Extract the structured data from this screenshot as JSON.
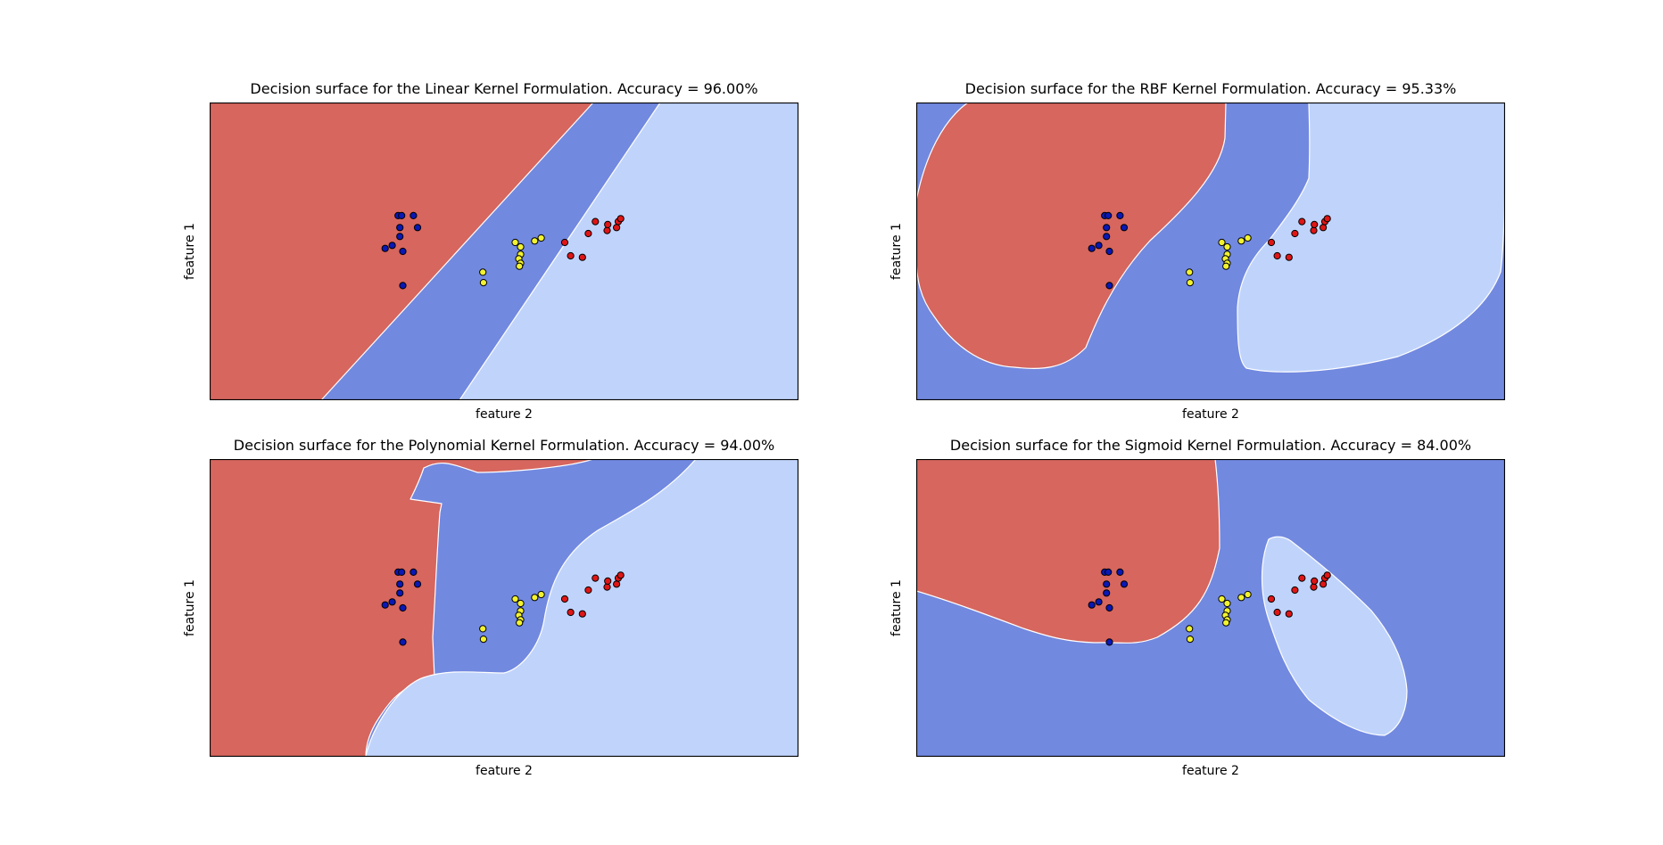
{
  "colors": {
    "class_red": "#d6665e",
    "class_mid": "#7289e0",
    "class_light": "#c0d4fb",
    "edge": "#ffffff",
    "pt_blue": "#0a18b5",
    "pt_yellow": "#f2f230",
    "pt_red": "#e01515",
    "frame": "#000000"
  },
  "chart_data": [
    {
      "type": "scatter",
      "title": "Decision surface for the Linear Kernel Formulation. Accuracy = 96.00%",
      "xlabel": "feature 2",
      "ylabel": "feature 1",
      "xlim": [
        0,
        1
      ],
      "ylim": [
        0,
        1
      ],
      "ticks": "none",
      "grid": false,
      "kernel": "linear"
    },
    {
      "type": "scatter",
      "title": "Decision surface for the RBF Kernel Formulation. Accuracy = 95.33%",
      "xlabel": "feature 2",
      "ylabel": "feature 1",
      "xlim": [
        0,
        1
      ],
      "ylim": [
        0,
        1
      ],
      "ticks": "none",
      "grid": false,
      "kernel": "rbf"
    },
    {
      "type": "scatter",
      "title": "Decision surface for the Polynomial Kernel Formulation. Accuracy = 94.00%",
      "xlabel": "feature 2",
      "ylabel": "feature 1",
      "xlim": [
        0,
        1
      ],
      "ylim": [
        0,
        1
      ],
      "ticks": "none",
      "grid": false,
      "kernel": "poly"
    },
    {
      "type": "scatter",
      "title": "Decision surface for the Sigmoid Kernel Formulation. Accuracy = 84.00%",
      "xlabel": "feature 2",
      "ylabel": "feature 1",
      "xlim": [
        0,
        1
      ],
      "ylim": [
        0,
        1
      ],
      "ticks": "none",
      "grid": false,
      "kernel": "sigmoid"
    }
  ],
  "points": [
    {
      "x": 0.32,
      "y": 0.62,
      "c": 0
    },
    {
      "x": 0.326,
      "y": 0.62,
      "c": 0
    },
    {
      "x": 0.346,
      "y": 0.62,
      "c": 0
    },
    {
      "x": 0.323,
      "y": 0.58,
      "c": 0
    },
    {
      "x": 0.353,
      "y": 0.58,
      "c": 0
    },
    {
      "x": 0.323,
      "y": 0.55,
      "c": 0
    },
    {
      "x": 0.31,
      "y": 0.52,
      "c": 0
    },
    {
      "x": 0.298,
      "y": 0.51,
      "c": 0
    },
    {
      "x": 0.328,
      "y": 0.5,
      "c": 0
    },
    {
      "x": 0.328,
      "y": 0.385,
      "c": 0
    },
    {
      "x": 0.464,
      "y": 0.43,
      "c": 1
    },
    {
      "x": 0.465,
      "y": 0.395,
      "c": 1
    },
    {
      "x": 0.519,
      "y": 0.53,
      "c": 1
    },
    {
      "x": 0.528,
      "y": 0.515,
      "c": 1
    },
    {
      "x": 0.528,
      "y": 0.49,
      "c": 1
    },
    {
      "x": 0.525,
      "y": 0.475,
      "c": 1
    },
    {
      "x": 0.528,
      "y": 0.46,
      "c": 1
    },
    {
      "x": 0.526,
      "y": 0.45,
      "c": 1
    },
    {
      "x": 0.552,
      "y": 0.535,
      "c": 1
    },
    {
      "x": 0.563,
      "y": 0.545,
      "c": 1
    },
    {
      "x": 0.603,
      "y": 0.53,
      "c": 2
    },
    {
      "x": 0.613,
      "y": 0.485,
      "c": 2
    },
    {
      "x": 0.633,
      "y": 0.48,
      "c": 2
    },
    {
      "x": 0.643,
      "y": 0.56,
      "c": 2
    },
    {
      "x": 0.655,
      "y": 0.6,
      "c": 2
    },
    {
      "x": 0.675,
      "y": 0.57,
      "c": 2
    },
    {
      "x": 0.676,
      "y": 0.59,
      "c": 2
    },
    {
      "x": 0.691,
      "y": 0.58,
      "c": 2
    },
    {
      "x": 0.694,
      "y": 0.6,
      "c": 2
    },
    {
      "x": 0.698,
      "y": 0.61,
      "c": 2
    }
  ]
}
